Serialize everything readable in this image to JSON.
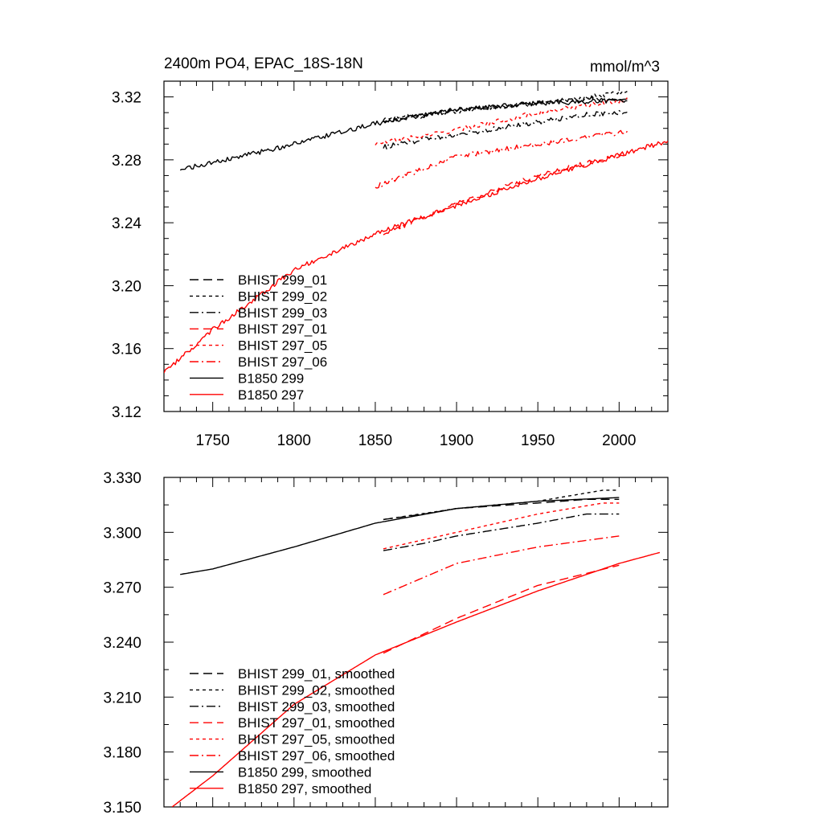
{
  "colors": {
    "black": "#000000",
    "red": "#ff0000"
  },
  "chart_data": [
    {
      "type": "line",
      "title": "2400m PO4, EPAC_18S-18N",
      "units": "mmol/m^3",
      "xlim": [
        1720,
        2030
      ],
      "ylim": [
        3.12,
        3.33
      ],
      "xticks": [
        1750,
        1800,
        1850,
        1900,
        1950,
        2000
      ],
      "xtick_labels": [
        "1750",
        "1800",
        "1850",
        "1900",
        "1950",
        "2000"
      ],
      "yticks": [
        3.12,
        3.16,
        3.2,
        3.24,
        3.28,
        3.32
      ],
      "ytick_labels": [
        "3.12",
        "3.16",
        "3.20",
        "3.24",
        "3.28",
        "3.32"
      ],
      "legend_position": "lower-left",
      "series": [
        {
          "name": "BHIST 299_01",
          "color": "#000000",
          "dash": "dashed",
          "noise": 0.0015,
          "points": [
            [
              1855,
              3.305
            ],
            [
              1880,
              3.308
            ],
            [
              1900,
              3.312
            ],
            [
              1950,
              3.316
            ],
            [
              1980,
              3.319
            ],
            [
              2000,
              3.318
            ],
            [
              2005,
              3.318
            ]
          ]
        },
        {
          "name": "BHIST 299_02",
          "color": "#000000",
          "dash": "dotted",
          "noise": 0.0015,
          "points": [
            [
              1855,
              3.306
            ],
            [
              1900,
              3.311
            ],
            [
              1950,
              3.316
            ],
            [
              1990,
              3.321
            ],
            [
              2005,
              3.324
            ]
          ]
        },
        {
          "name": "BHIST 299_03",
          "color": "#000000",
          "dash": "dashdot",
          "noise": 0.0015,
          "points": [
            [
              1855,
              3.288
            ],
            [
              1880,
              3.293
            ],
            [
              1900,
              3.296
            ],
            [
              1950,
              3.304
            ],
            [
              1980,
              3.309
            ],
            [
              2000,
              3.31
            ],
            [
              2005,
              3.309
            ]
          ]
        },
        {
          "name": "BHIST 297_01",
          "color": "#ff0000",
          "dash": "dashed",
          "noise": 0.0015,
          "points": [
            [
              1855,
              3.233
            ],
            [
              1900,
              3.252
            ],
            [
              1950,
              3.27
            ],
            [
              2000,
              3.283
            ],
            [
              2005,
              3.284
            ]
          ]
        },
        {
          "name": "BHIST 297_05",
          "color": "#ff0000",
          "dash": "dotted",
          "noise": 0.0015,
          "points": [
            [
              1850,
              3.29
            ],
            [
              1900,
              3.299
            ],
            [
              1950,
              3.31
            ],
            [
              1990,
              3.316
            ],
            [
              2005,
              3.318
            ]
          ]
        },
        {
          "name": "BHIST 297_06",
          "color": "#ff0000",
          "dash": "dashdot",
          "noise": 0.0015,
          "points": [
            [
              1850,
              3.263
            ],
            [
              1900,
              3.282
            ],
            [
              1950,
              3.29
            ],
            [
              2005,
              3.298
            ]
          ]
        },
        {
          "name": "B1850 299",
          "color": "#000000",
          "dash": "solid",
          "noise": 0.0015,
          "points": [
            [
              1730,
              3.274
            ],
            [
              1750,
              3.278
            ],
            [
              1800,
              3.29
            ],
            [
              1850,
              3.303
            ],
            [
              1900,
              3.312
            ],
            [
              1950,
              3.316
            ],
            [
              2005,
              3.318
            ]
          ]
        },
        {
          "name": "B1850 297",
          "color": "#ff0000",
          "dash": "solid",
          "noise": 0.0015,
          "points": [
            [
              1720,
              3.145
            ],
            [
              1750,
              3.172
            ],
            [
              1800,
              3.21
            ],
            [
              1850,
              3.233
            ],
            [
              1900,
              3.251
            ],
            [
              1950,
              3.268
            ],
            [
              2000,
              3.283
            ],
            [
              2030,
              3.292
            ]
          ]
        }
      ]
    },
    {
      "type": "line",
      "xlim": [
        1720,
        2030
      ],
      "ylim": [
        3.15,
        3.33
      ],
      "xticks": [
        1750,
        1800,
        1850,
        1900,
        1950,
        2000
      ],
      "xtick_labels": [],
      "yticks": [
        3.15,
        3.18,
        3.21,
        3.24,
        3.27,
        3.3,
        3.33
      ],
      "ytick_labels": [
        "3.150",
        "3.180",
        "3.210",
        "3.240",
        "3.270",
        "3.300",
        "3.330"
      ],
      "legend_position": "lower-left",
      "series": [
        {
          "name": "BHIST 299_01, smoothed",
          "color": "#000000",
          "dash": "dashed",
          "noise": 0,
          "points": [
            [
              1855,
              3.307
            ],
            [
              1880,
              3.31
            ],
            [
              1900,
              3.313
            ],
            [
              1950,
              3.316
            ],
            [
              1980,
              3.318
            ],
            [
              2000,
              3.318
            ]
          ]
        },
        {
          "name": "BHIST 299_02, smoothed",
          "color": "#000000",
          "dash": "dotted",
          "noise": 0,
          "points": [
            [
              1855,
              3.307
            ],
            [
              1900,
              3.313
            ],
            [
              1950,
              3.317
            ],
            [
              1990,
              3.323
            ],
            [
              2000,
              3.323
            ]
          ]
        },
        {
          "name": "BHIST 299_03, smoothed",
          "color": "#000000",
          "dash": "dashdot",
          "noise": 0,
          "points": [
            [
              1855,
              3.29
            ],
            [
              1880,
              3.294
            ],
            [
              1900,
              3.298
            ],
            [
              1950,
              3.305
            ],
            [
              1980,
              3.31
            ],
            [
              2000,
              3.31
            ]
          ]
        },
        {
          "name": "BHIST 297_01, smoothed",
          "color": "#ff0000",
          "dash": "dashed",
          "noise": 0,
          "points": [
            [
              1855,
              3.234
            ],
            [
              1900,
              3.253
            ],
            [
              1950,
              3.271
            ],
            [
              2000,
              3.282
            ]
          ]
        },
        {
          "name": "BHIST 297_05, smoothed",
          "color": "#ff0000",
          "dash": "dotted",
          "noise": 0,
          "points": [
            [
              1855,
              3.291
            ],
            [
              1900,
              3.3
            ],
            [
              1950,
              3.31
            ],
            [
              1990,
              3.316
            ],
            [
              2000,
              3.316
            ]
          ]
        },
        {
          "name": "BHIST 297_06, smoothed",
          "color": "#ff0000",
          "dash": "dashdot",
          "noise": 0,
          "points": [
            [
              1855,
              3.266
            ],
            [
              1900,
              3.283
            ],
            [
              1950,
              3.292
            ],
            [
              2000,
              3.298
            ]
          ]
        },
        {
          "name": "B1850 299, smoothed",
          "color": "#000000",
          "dash": "solid",
          "noise": 0,
          "points": [
            [
              1730,
              3.277
            ],
            [
              1750,
              3.28
            ],
            [
              1800,
              3.292
            ],
            [
              1850,
              3.305
            ],
            [
              1900,
              3.313
            ],
            [
              1950,
              3.317
            ],
            [
              2000,
              3.319
            ]
          ]
        },
        {
          "name": "B1850 297, smoothed",
          "color": "#ff0000",
          "dash": "solid",
          "noise": 0,
          "points": [
            [
              1725,
              3.15
            ],
            [
              1750,
              3.167
            ],
            [
              1800,
              3.206
            ],
            [
              1850,
              3.233
            ],
            [
              1900,
              3.251
            ],
            [
              1950,
              3.268
            ],
            [
              2000,
              3.283
            ],
            [
              2025,
              3.289
            ]
          ]
        }
      ]
    }
  ]
}
